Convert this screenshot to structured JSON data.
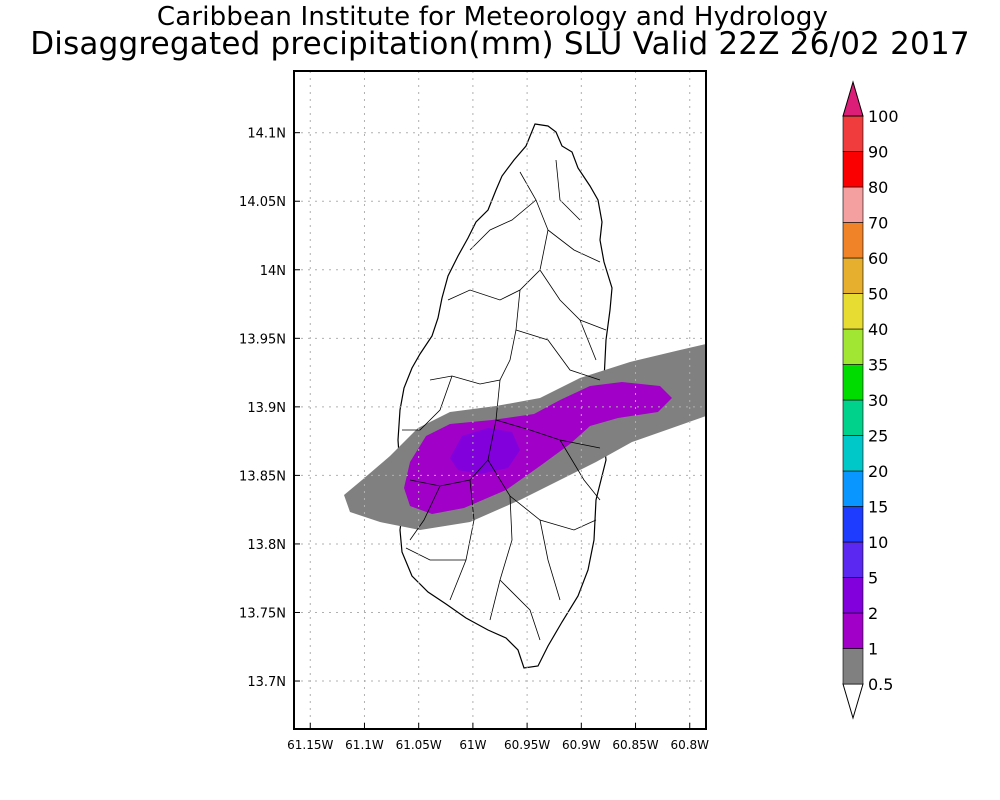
{
  "header": {
    "institute": "Caribbean Institute for Meteorology and Hydrology",
    "product": "Disaggregated precipitation(mm) SLU Valid 22Z 26/02 2017"
  },
  "map": {
    "lat_range": [
      13.665,
      14.145
    ],
    "lon_range": [
      -61.165,
      -60.785
    ],
    "lat_ticks": [
      {
        "value": 14.1,
        "label": "14.1N"
      },
      {
        "value": 14.05,
        "label": "14.05N"
      },
      {
        "value": 14.0,
        "label": "14N"
      },
      {
        "value": 13.95,
        "label": "13.95N"
      },
      {
        "value": 13.9,
        "label": "13.9N"
      },
      {
        "value": 13.85,
        "label": "13.85N"
      },
      {
        "value": 13.8,
        "label": "13.8N"
      },
      {
        "value": 13.75,
        "label": "13.75N"
      },
      {
        "value": 13.7,
        "label": "13.7N"
      }
    ],
    "lon_ticks": [
      {
        "value": -61.15,
        "label": "61.15W"
      },
      {
        "value": -61.1,
        "label": "61.1W"
      },
      {
        "value": -61.05,
        "label": "61.05W"
      },
      {
        "value": -61.0,
        "label": "61W"
      },
      {
        "value": -60.95,
        "label": "60.95W"
      },
      {
        "value": -60.9,
        "label": "60.9W"
      },
      {
        "value": -60.85,
        "label": "60.85W"
      },
      {
        "value": -60.8,
        "label": "60.8W"
      }
    ],
    "grid": true,
    "grid_color": "#b0b0b0"
  },
  "legend": {
    "placement": "right",
    "labels": [
      "0.5",
      "1",
      "2",
      "5",
      "10",
      "15",
      "20",
      "25",
      "30",
      "35",
      "40",
      "50",
      "60",
      "70",
      "80",
      "90",
      "100"
    ],
    "colors": [
      "#808080",
      "#a100c8",
      "#8200dc",
      "#5a28f0",
      "#1e3cff",
      "#0a96ff",
      "#00c8c8",
      "#00d28c",
      "#00dc00",
      "#a0e632",
      "#e6dc32",
      "#e6af2d",
      "#f08228",
      "#f5a0a0",
      "#fa0000",
      "#f03c3c",
      "#dc1e78"
    ]
  }
}
